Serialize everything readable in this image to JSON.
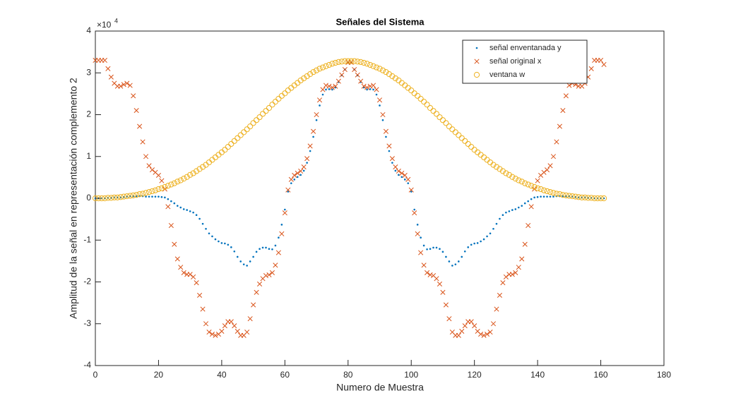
{
  "chart_data": {
    "type": "scatter",
    "title": "Señales del Sistema",
    "xlabel": "Numero de Muestra",
    "ylabel": "Amplitud de la señal en representación complemento 2",
    "y_exponent": {
      "base": "×10",
      "power": "4"
    },
    "xlim": [
      0,
      180
    ],
    "xticks": [
      0,
      20,
      40,
      60,
      80,
      100,
      120,
      140,
      160,
      180
    ],
    "ylim": [
      -4,
      4
    ],
    "yticks": [
      -4,
      -3,
      -2,
      -1,
      0,
      1,
      2,
      3,
      4
    ],
    "legend": "northeast",
    "x": [
      0,
      1,
      2,
      3,
      4,
      5,
      6,
      7,
      8,
      9,
      10,
      11,
      12,
      13,
      14,
      15,
      16,
      17,
      18,
      19,
      20,
      21,
      22,
      23,
      24,
      25,
      26,
      27,
      28,
      29,
      30,
      31,
      32,
      33,
      34,
      35,
      36,
      37,
      38,
      39,
      40,
      41,
      42,
      43,
      44,
      45,
      46,
      47,
      48,
      49,
      50,
      51,
      52,
      53,
      54,
      55,
      56,
      57,
      58,
      59,
      60,
      61,
      62,
      63,
      64,
      65,
      66,
      67,
      68,
      69,
      70,
      71,
      72,
      73,
      74,
      75,
      76,
      77,
      78,
      79,
      80,
      81,
      82,
      83,
      84,
      85,
      86,
      87,
      88,
      89,
      90,
      91,
      92,
      93,
      94,
      95,
      96,
      97,
      98,
      99,
      100,
      101,
      102,
      103,
      104,
      105,
      106,
      107,
      108,
      109,
      110,
      111,
      112,
      113,
      114,
      115,
      116,
      117,
      118,
      119,
      120,
      121,
      122,
      123,
      124,
      125,
      126,
      127,
      128,
      129,
      130,
      131,
      132,
      133,
      134,
      135,
      136,
      137,
      138,
      139,
      140,
      141,
      142,
      143,
      144,
      145,
      146,
      147,
      148,
      149,
      150,
      151,
      152,
      153,
      154,
      155,
      156,
      157,
      158,
      159,
      160,
      161
    ],
    "series": [
      {
        "name": "señal enventanada y",
        "color": "#0072BD",
        "marker": ".",
        "values": [
          0,
          0,
          0,
          0,
          0.01,
          0.01,
          0.02,
          0.02,
          0.02,
          0.03,
          0.04,
          0.05,
          0.05,
          0.05,
          0.05,
          0.05,
          0.04,
          0.04,
          0.04,
          0.04,
          0.04,
          0.03,
          0.02,
          -0.02,
          -0.07,
          -0.12,
          -0.18,
          -0.22,
          -0.26,
          -0.28,
          -0.31,
          -0.34,
          -0.4,
          -0.49,
          -0.61,
          -0.73,
          -0.84,
          -0.91,
          -0.98,
          -1.03,
          -1.07,
          -1.08,
          -1.11,
          -1.17,
          -1.27,
          -1.4,
          -1.51,
          -1.58,
          -1.61,
          -1.51,
          -1.4,
          -1.28,
          -1.21,
          -1.18,
          -1.18,
          -1.21,
          -1.22,
          -1.13,
          -0.94,
          -0.63,
          -0.27,
          0.16,
          0.36,
          0.45,
          0.51,
          0.56,
          0.66,
          0.85,
          1.13,
          1.47,
          1.87,
          2.22,
          2.48,
          2.6,
          2.61,
          2.6,
          2.65,
          2.78,
          2.94,
          3.08,
          3.25,
          3.25,
          3.08,
          2.94,
          2.78,
          2.65,
          2.6,
          2.61,
          2.6,
          2.48,
          2.22,
          1.87,
          1.47,
          1.13,
          0.85,
          0.66,
          0.56,
          0.51,
          0.45,
          0.36,
          0.16,
          -0.27,
          -0.63,
          -0.94,
          -1.13,
          -1.22,
          -1.21,
          -1.18,
          -1.18,
          -1.21,
          -1.28,
          -1.4,
          -1.51,
          -1.61,
          -1.58,
          -1.51,
          -1.4,
          -1.27,
          -1.17,
          -1.11,
          -1.08,
          -1.07,
          -1.03,
          -0.98,
          -0.91,
          -0.84,
          -0.73,
          -0.61,
          -0.49,
          -0.4,
          -0.34,
          -0.31,
          -0.28,
          -0.26,
          -0.22,
          -0.18,
          -0.12,
          -0.07,
          -0.02,
          0.02,
          0.03,
          0.04,
          0.04,
          0.04,
          0.04,
          0.04,
          0.05,
          0.05,
          0.05,
          0.05,
          0.05,
          0.04,
          0.03,
          0.02,
          0.02,
          0.02,
          0.01,
          0.01,
          0,
          0,
          0,
          0
        ]
      },
      {
        "name": "señal original x",
        "color": "#D95319",
        "marker": "x",
        "values": [
          3.3,
          3.3,
          3.3,
          3.3,
          3.1,
          2.9,
          2.75,
          2.68,
          2.68,
          2.72,
          2.75,
          2.7,
          2.45,
          2.1,
          1.72,
          1.35,
          1,
          0.78,
          0.68,
          0.62,
          0.55,
          0.42,
          0.22,
          -0.2,
          -0.65,
          -1.1,
          -1.45,
          -1.65,
          -1.78,
          -1.82,
          -1.82,
          -1.88,
          -2.02,
          -2.32,
          -2.65,
          -3,
          -3.2,
          -3.25,
          -3.28,
          -3.25,
          -3.18,
          -3.05,
          -2.95,
          -2.95,
          -3.05,
          -3.18,
          -3.28,
          -3.28,
          -3.2,
          -2.88,
          -2.55,
          -2.25,
          -2.05,
          -1.92,
          -1.85,
          -1.83,
          -1.78,
          -1.6,
          -1.3,
          -0.85,
          -0.35,
          0.2,
          0.45,
          0.55,
          0.6,
          0.65,
          0.75,
          0.95,
          1.25,
          1.6,
          2,
          2.35,
          2.6,
          2.7,
          2.68,
          2.65,
          2.68,
          2.8,
          2.95,
          3.08,
          3.25,
          3.25,
          3.08,
          2.95,
          2.8,
          2.68,
          2.65,
          2.68,
          2.7,
          2.6,
          2.35,
          2,
          1.6,
          1.25,
          0.95,
          0.75,
          0.65,
          0.6,
          0.55,
          0.45,
          0.2,
          -0.35,
          -0.85,
          -1.3,
          -1.6,
          -1.78,
          -1.83,
          -1.85,
          -1.92,
          -2.05,
          -2.25,
          -2.55,
          -2.88,
          -3.2,
          -3.28,
          -3.28,
          -3.18,
          -3.05,
          -2.95,
          -2.95,
          -3.05,
          -3.18,
          -3.25,
          -3.28,
          -3.25,
          -3.2,
          -3,
          -2.65,
          -2.32,
          -2.02,
          -1.88,
          -1.82,
          -1.82,
          -1.78,
          -1.65,
          -1.45,
          -1.1,
          -0.65,
          -0.2,
          0.22,
          0.42,
          0.55,
          0.62,
          0.68,
          0.78,
          1,
          1.35,
          1.72,
          2.1,
          2.45,
          2.7,
          2.75,
          2.72,
          2.68,
          2.68,
          2.75,
          2.9,
          3.1,
          3.3,
          3.3,
          3.3,
          3.2
        ]
      },
      {
        "name": "ventana w",
        "color": "#EDB120",
        "marker": "o",
        "values": [
          0,
          0,
          0,
          0,
          0.01,
          0.01,
          0.02,
          0.02,
          0.03,
          0.04,
          0.05,
          0.06,
          0.07,
          0.08,
          0.1,
          0.11,
          0.13,
          0.15,
          0.17,
          0.19,
          0.22,
          0.24,
          0.27,
          0.3,
          0.33,
          0.36,
          0.4,
          0.43,
          0.47,
          0.51,
          0.56,
          0.6,
          0.65,
          0.7,
          0.75,
          0.8,
          0.86,
          0.92,
          0.98,
          1.04,
          1.1,
          1.16,
          1.23,
          1.3,
          1.37,
          1.44,
          1.51,
          1.58,
          1.65,
          1.72,
          1.8,
          1.87,
          1.94,
          2.02,
          2.09,
          2.16,
          2.24,
          2.31,
          2.38,
          2.45,
          2.51,
          2.58,
          2.64,
          2.7,
          2.76,
          2.82,
          2.87,
          2.92,
          2.97,
          3.02,
          3.06,
          3.1,
          3.13,
          3.16,
          3.19,
          3.22,
          3.24,
          3.26,
          3.27,
          3.28,
          3.28,
          3.28,
          3.28,
          3.27,
          3.26,
          3.24,
          3.22,
          3.19,
          3.16,
          3.13,
          3.1,
          3.06,
          3.02,
          2.97,
          2.92,
          2.87,
          2.82,
          2.76,
          2.7,
          2.64,
          2.58,
          2.51,
          2.45,
          2.38,
          2.31,
          2.24,
          2.16,
          2.09,
          2.02,
          1.94,
          1.87,
          1.8,
          1.72,
          1.65,
          1.58,
          1.51,
          1.44,
          1.37,
          1.3,
          1.23,
          1.16,
          1.1,
          1.04,
          0.98,
          0.92,
          0.86,
          0.8,
          0.75,
          0.7,
          0.65,
          0.6,
          0.56,
          0.51,
          0.47,
          0.43,
          0.4,
          0.36,
          0.33,
          0.3,
          0.27,
          0.24,
          0.22,
          0.19,
          0.17,
          0.15,
          0.13,
          0.11,
          0.1,
          0.08,
          0.07,
          0.06,
          0.05,
          0.04,
          0.03,
          0.02,
          0.02,
          0.01,
          0.01,
          0,
          0,
          0,
          0
        ]
      }
    ]
  }
}
